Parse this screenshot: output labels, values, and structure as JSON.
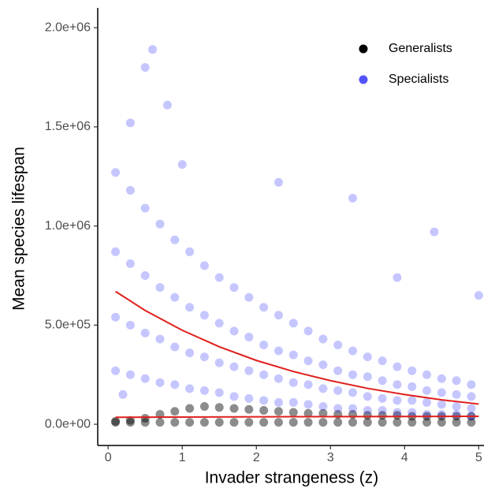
{
  "chart_data": {
    "type": "scatter",
    "xlabel": "Invader strangeness (z)",
    "ylabel": "Mean species lifespan",
    "xlim": [
      -0.14,
      5.07
    ],
    "ylim": [
      -107000,
      2100000
    ],
    "xticks": [
      0,
      1,
      2,
      3,
      4,
      5
    ],
    "yticks": [
      {
        "value": 0,
        "label": "0.0e+00"
      },
      {
        "value": 500000,
        "label": "5.0e+05"
      },
      {
        "value": 1000000,
        "label": "1.0e+06"
      },
      {
        "value": 1500000,
        "label": "1.5e+06"
      },
      {
        "value": 2000000,
        "label": "2.0e+06"
      }
    ],
    "grid": false,
    "legend": "top-right",
    "series": [
      {
        "name": "Generalists",
        "color": "#000000",
        "alpha": 0.45,
        "x": [
          0.1,
          0.1,
          0.3,
          0.3,
          0.5,
          0.5,
          0.7,
          0.7,
          0.9,
          0.9,
          1.1,
          1.1,
          1.3,
          1.3,
          1.5,
          1.5,
          1.7,
          1.7,
          1.9,
          1.9,
          2.1,
          2.1,
          2.3,
          2.3,
          2.5,
          2.5,
          2.7,
          2.7,
          2.9,
          2.9,
          3.1,
          3.1,
          3.3,
          3.3,
          3.5,
          3.5,
          3.7,
          3.7,
          3.9,
          3.9,
          4.1,
          4.1,
          4.3,
          4.3,
          4.5,
          4.5,
          4.7,
          4.7,
          4.9,
          4.9
        ],
        "values": [
          10000,
          15000,
          10000,
          20000,
          10000,
          30000,
          10000,
          50000,
          10000,
          65000,
          10000,
          80000,
          10000,
          90000,
          10000,
          85000,
          10000,
          80000,
          10000,
          75000,
          10000,
          70000,
          10000,
          65000,
          10000,
          60000,
          10000,
          55000,
          10000,
          55000,
          10000,
          50000,
          10000,
          50000,
          10000,
          45000,
          10000,
          45000,
          10000,
          45000,
          10000,
          40000,
          10000,
          40000,
          10000,
          40000,
          10000,
          40000,
          10000,
          40000
        ]
      },
      {
        "name": "Specialists",
        "color": "#1a1aff",
        "alpha": 0.25,
        "x": [
          0.1,
          0.1,
          0.1,
          0.1,
          0.3,
          0.3,
          0.3,
          0.3,
          0.5,
          0.5,
          0.5,
          0.5,
          0.7,
          0.7,
          0.7,
          0.7,
          0.9,
          0.9,
          0.9,
          0.9,
          1.1,
          1.1,
          1.1,
          1.1,
          1.3,
          1.3,
          1.3,
          1.3,
          1.5,
          1.5,
          1.5,
          1.5,
          1.7,
          1.7,
          1.7,
          1.7,
          1.9,
          1.9,
          1.9,
          1.9,
          2.1,
          2.1,
          2.1,
          2.1,
          2.3,
          2.3,
          2.3,
          2.3,
          2.5,
          2.5,
          2.5,
          2.5,
          2.7,
          2.7,
          2.7,
          2.7,
          2.9,
          2.9,
          2.9,
          2.9,
          3.1,
          3.1,
          3.1,
          3.1,
          3.3,
          3.3,
          3.3,
          3.3,
          3.5,
          3.5,
          3.5,
          3.5,
          3.7,
          3.7,
          3.7,
          3.7,
          3.9,
          3.9,
          3.9,
          3.9,
          4.1,
          4.1,
          4.1,
          4.1,
          4.3,
          4.3,
          4.3,
          4.3,
          4.5,
          4.5,
          4.5,
          4.5,
          4.7,
          4.7,
          4.7,
          4.7,
          4.9,
          4.9,
          4.9,
          4.9,
          0.5,
          0.6,
          0.8,
          0.3,
          1.0,
          2.3,
          3.3,
          4.4,
          3.9,
          5.0,
          0.2
        ],
        "values": [
          1270000,
          870000,
          540000,
          270000,
          1180000,
          810000,
          500000,
          250000,
          1090000,
          750000,
          460000,
          230000,
          1010000,
          690000,
          430000,
          210000,
          930000,
          640000,
          390000,
          200000,
          870000,
          590000,
          360000,
          180000,
          800000,
          550000,
          340000,
          170000,
          740000,
          510000,
          310000,
          160000,
          690000,
          470000,
          290000,
          140000,
          640000,
          440000,
          270000,
          130000,
          590000,
          400000,
          250000,
          120000,
          550000,
          370000,
          230000,
          110000,
          510000,
          350000,
          210000,
          110000,
          470000,
          320000,
          200000,
          100000,
          430000,
          300000,
          180000,
          90000,
          400000,
          270000,
          170000,
          80000,
          370000,
          250000,
          160000,
          80000,
          340000,
          240000,
          140000,
          70000,
          320000,
          220000,
          130000,
          70000,
          290000,
          200000,
          120000,
          60000,
          270000,
          190000,
          120000,
          60000,
          250000,
          170000,
          110000,
          50000,
          230000,
          160000,
          100000,
          50000,
          220000,
          150000,
          90000,
          50000,
          200000,
          140000,
          80000,
          40000,
          1800000,
          1890000,
          1610000,
          1520000,
          1310000,
          1220000,
          1140000,
          970000,
          740000,
          650000,
          150000
        ]
      }
    ],
    "fits": [
      {
        "color": "#e0201c",
        "x": [
          0.1,
          0.5,
          1.0,
          1.5,
          2.0,
          2.5,
          3.0,
          3.5,
          4.0,
          4.5,
          5.0
        ],
        "values": [
          670000,
          574000,
          474000,
          391000,
          322000,
          266000,
          220000,
          181000,
          150000,
          123000,
          102000
        ]
      },
      {
        "color": "#e0201c",
        "x": [
          0.1,
          2.5,
          5.0
        ],
        "values": [
          35000,
          38000,
          40000
        ]
      }
    ]
  }
}
